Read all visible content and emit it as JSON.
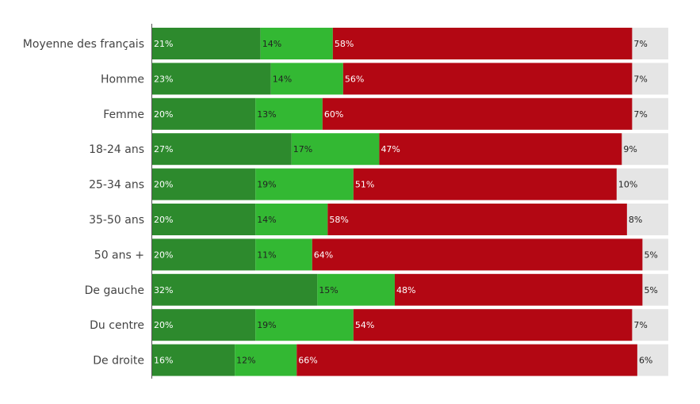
{
  "chart_data": {
    "type": "bar",
    "orientation": "horizontal",
    "stacked": true,
    "normalized": true,
    "categories": [
      "Moyenne des français",
      "Homme",
      "Femme",
      "18-24 ans",
      "25-34 ans",
      "35-50 ans",
      "50 ans +",
      "De gauche",
      "Du centre",
      "De droite"
    ],
    "series": [
      {
        "color": "#2d8a2d",
        "label_color": "#ffffff",
        "values": [
          21,
          23,
          20,
          27,
          20,
          20,
          20,
          32,
          20,
          16
        ],
        "labels": [
          "21%",
          "23%",
          "20%",
          "27%",
          "20%",
          "20%",
          "20%",
          "32%",
          "20%",
          "16%"
        ]
      },
      {
        "color": "#33b833",
        "label_color": "#222222",
        "values": [
          14,
          14,
          13,
          17,
          19,
          14,
          11,
          15,
          19,
          12
        ],
        "labels": [
          "14%",
          "14%",
          "13%",
          "17%",
          "19%",
          "14%",
          "11%",
          "15%",
          "19%",
          "12%"
        ]
      },
      {
        "color": "#b30713",
        "label_color": "#ffffff",
        "values": [
          58,
          56,
          60,
          47,
          51,
          58,
          64,
          48,
          54,
          66
        ],
        "labels": [
          "58%",
          "56%",
          "60%",
          "47%",
          "51%",
          "58%",
          "64%",
          "48%",
          "54%",
          "66%"
        ]
      },
      {
        "color": "#e5e5e5",
        "label_color": "#222222",
        "values": [
          7,
          7,
          7,
          9,
          10,
          8,
          5,
          5,
          7,
          6
        ],
        "labels": [
          "7%",
          "7%",
          "7%",
          "9%",
          "10%",
          "8%",
          "5%",
          "5%",
          "7%",
          "6%"
        ]
      }
    ],
    "xlim": [
      0,
      100
    ],
    "grid": false,
    "legend": "none"
  }
}
